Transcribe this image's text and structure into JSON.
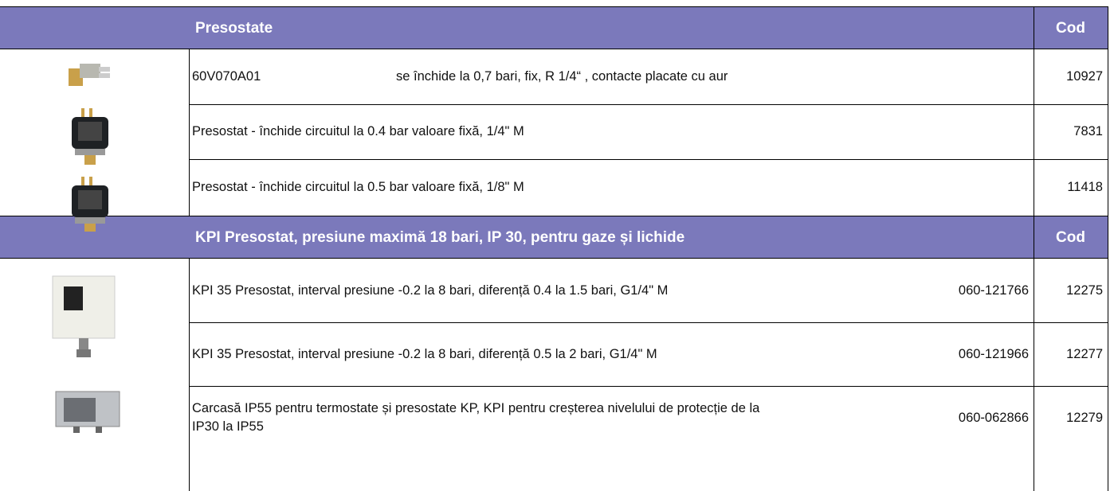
{
  "sections": [
    {
      "header": "Presostate",
      "cod_header": "Cod",
      "rows": [
        {
          "model": "60V070A01",
          "description": "se închide la 0,7 bari, fix, R 1/4“ , contacte placate cu aur",
          "cod": "10927"
        },
        {
          "description": "Presostat - închide circuitul la 0.4 bar valoare fixă, 1/4\" M",
          "cod": "7831"
        },
        {
          "description": "Presostat - închide circuitul la 0.5 bar valoare fixă, 1/8\" M",
          "cod": "11418"
        }
      ]
    },
    {
      "header": "KPI Presostat, presiune maximă 18 bari, IP 30, pentru gaze și lichide",
      "cod_header": "Cod",
      "rows": [
        {
          "description": "KPI 35 Presostat, interval presiune -0.2 la 8 bari, diferență  0.4 la 1.5 bari,  G1/4\" M",
          "code": "060-121766",
          "cod": "12275"
        },
        {
          "description": "KPI 35 Presostat, interval presiune  -0.2 la 8 bari, diferență 0.5 la 2 bari, G1/4\" M",
          "code": "060-121966",
          "cod": "12277"
        },
        {
          "description": "Carcasă IP55 pentru termostate și presostate KP, KPI pentru creșterea nivelului de protecție de la IP30 la IP55",
          "code": "060-062866",
          "cod": "12279"
        }
      ]
    }
  ]
}
